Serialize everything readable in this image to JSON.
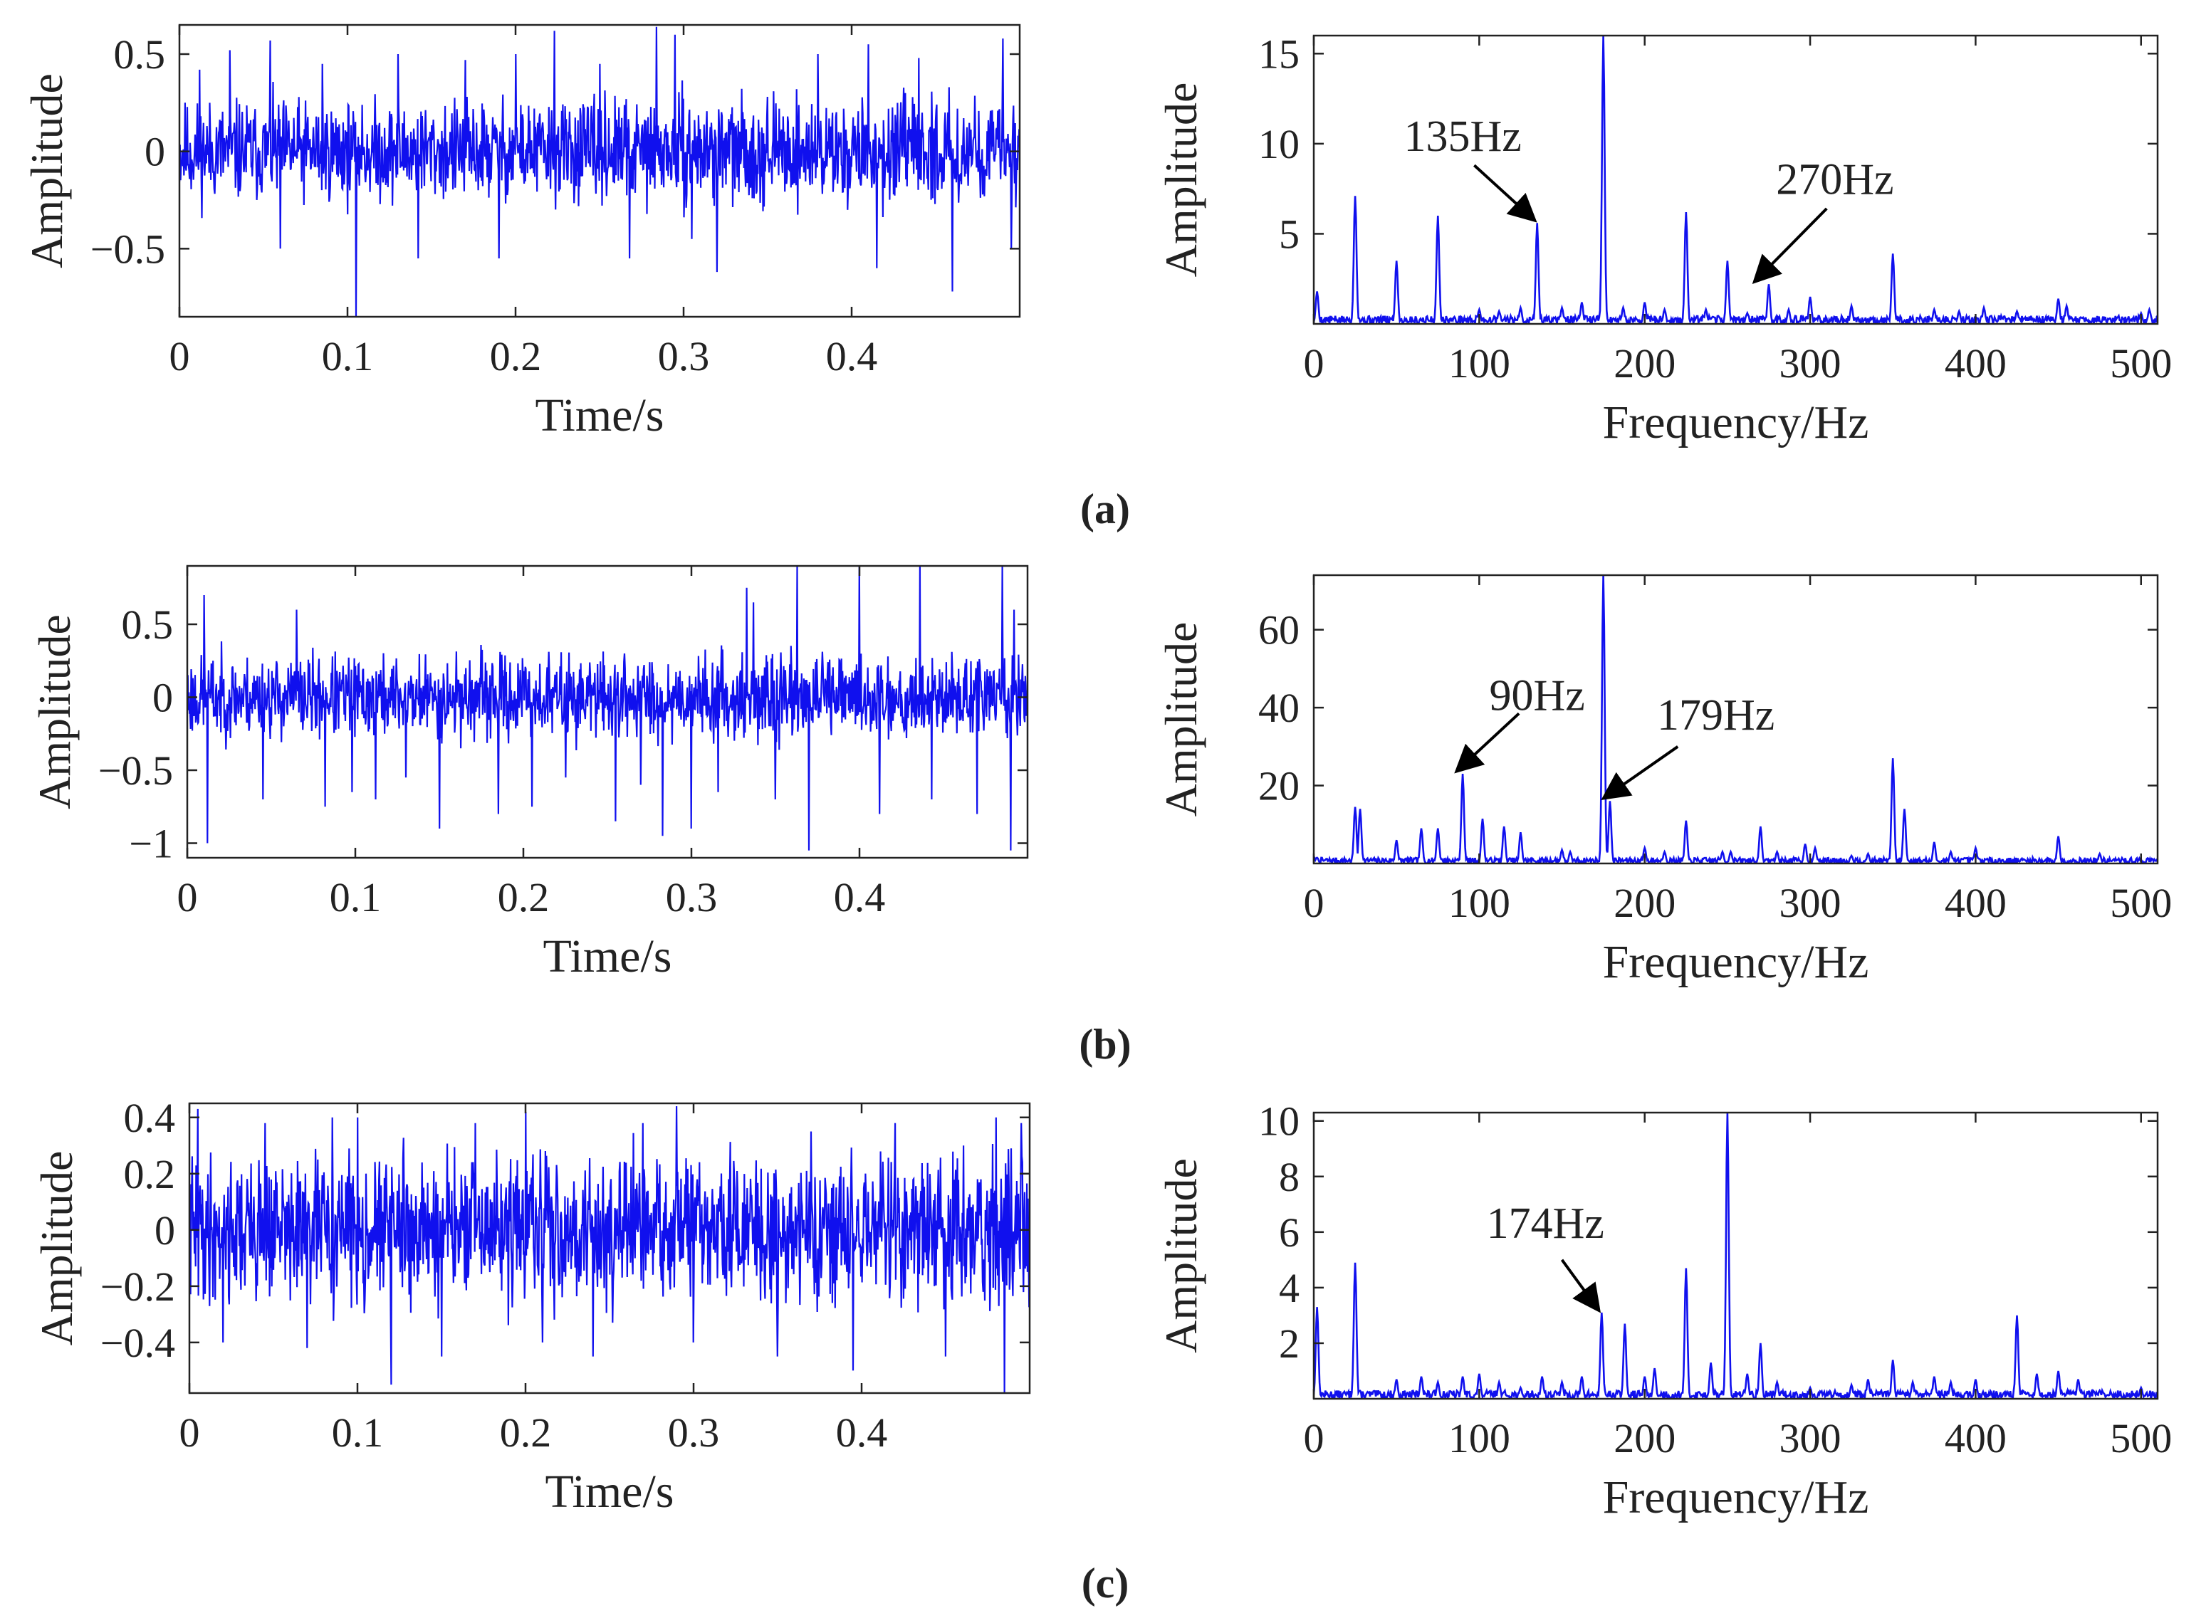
{
  "colors": {
    "signal": "#1010ee",
    "axis": "#222222",
    "arrow": "#000000"
  },
  "labels": {
    "time_xlabel": "Time/s",
    "freq_xlabel": "Frequency/Hz",
    "ylabel": "Amplitude"
  },
  "chart_data": [
    {
      "id": "a",
      "caption": "(a)",
      "time": {
        "type": "line",
        "xlabel": "Time/s",
        "ylabel": "Amplitude",
        "xlim": [
          0,
          0.5
        ],
        "ylim": [
          -0.85,
          0.65
        ],
        "xticks": [
          0,
          0.1,
          0.2,
          0.3,
          0.4
        ],
        "xticklabels": [
          "0",
          "0.1",
          "0.2",
          "0.3",
          "0.4"
        ],
        "yticks": [
          -0.5,
          0,
          0.5
        ],
        "yticklabels": [
          "−0.5",
          "0",
          "0.5"
        ],
        "seed": 11,
        "noise_amp": 0.2,
        "spikes": [
          [
            0.012,
            0.42
          ],
          [
            0.03,
            0.52
          ],
          [
            0.054,
            0.57
          ],
          [
            0.06,
            -0.5
          ],
          [
            0.085,
            0.45
          ],
          [
            0.105,
            -0.85
          ],
          [
            0.13,
            0.5
          ],
          [
            0.142,
            -0.55
          ],
          [
            0.17,
            0.47
          ],
          [
            0.19,
            -0.55
          ],
          [
            0.2,
            0.5
          ],
          [
            0.223,
            0.62
          ],
          [
            0.25,
            0.45
          ],
          [
            0.268,
            -0.55
          ],
          [
            0.284,
            0.64
          ],
          [
            0.295,
            0.6
          ],
          [
            0.305,
            -0.45
          ],
          [
            0.32,
            -0.62
          ],
          [
            0.38,
            0.5
          ],
          [
            0.41,
            0.55
          ],
          [
            0.415,
            -0.6
          ],
          [
            0.44,
            0.48
          ],
          [
            0.46,
            -0.72
          ],
          [
            0.49,
            0.58
          ],
          [
            0.495,
            -0.5
          ]
        ]
      },
      "spectrum": {
        "type": "line",
        "xlabel": "Frequency/Hz",
        "ylabel": "Amplitude",
        "xlim": [
          0,
          510
        ],
        "ylim": [
          0,
          16
        ],
        "xticks": [
          0,
          100,
          200,
          300,
          400,
          500
        ],
        "xticklabels": [
          "0",
          "100",
          "200",
          "300",
          "400",
          "500"
        ],
        "yticks": [
          5,
          10,
          15
        ],
        "yticklabels": [
          "5",
          "10",
          "15"
        ],
        "seed": 5,
        "floor": 0.45,
        "peaks": [
          [
            2,
            1.8
          ],
          [
            25,
            7.1
          ],
          [
            50,
            3.5
          ],
          [
            75,
            6.0
          ],
          [
            100,
            0.8
          ],
          [
            112,
            0.7
          ],
          [
            125,
            0.9
          ],
          [
            135,
            5.6
          ],
          [
            150,
            0.9
          ],
          [
            162,
            1.2
          ],
          [
            175,
            16.0
          ],
          [
            187,
            0.9
          ],
          [
            200,
            1.2
          ],
          [
            212,
            0.8
          ],
          [
            225,
            6.2
          ],
          [
            237,
            0.8
          ],
          [
            250,
            3.5
          ],
          [
            262,
            0.6
          ],
          [
            275,
            2.2
          ],
          [
            287,
            0.8
          ],
          [
            300,
            1.5
          ],
          [
            325,
            1.0
          ],
          [
            350,
            3.9
          ],
          [
            375,
            0.8
          ],
          [
            390,
            0.7
          ],
          [
            405,
            0.9
          ],
          [
            425,
            0.7
          ],
          [
            450,
            1.4
          ],
          [
            455,
            1.0
          ],
          [
            500,
            0.6
          ],
          [
            505,
            0.8
          ]
        ],
        "annotations": [
          {
            "text": "135Hz",
            "freq": 135,
            "amp": 5.6,
            "label_freq": 90,
            "label_amp": 10.4,
            "arrow_from": [
              97,
              8.8
            ]
          },
          {
            "text": "270Hz",
            "freq": 270,
            "amp": 2.2,
            "label_freq": 315,
            "label_amp": 8.0,
            "arrow_from": [
              310,
              6.4
            ]
          }
        ]
      }
    },
    {
      "id": "b",
      "caption": "(b)",
      "time": {
        "type": "line",
        "xlabel": "Time/s",
        "ylabel": "Amplitude",
        "xlim": [
          0,
          0.5
        ],
        "ylim": [
          -1.1,
          0.9
        ],
        "xticks": [
          0,
          0.1,
          0.2,
          0.3,
          0.4
        ],
        "xticklabels": [
          "0",
          "0.1",
          "0.2",
          "0.3",
          "0.4"
        ],
        "yticks": [
          -1,
          -0.5,
          0,
          0.5
        ],
        "yticklabels": [
          "−1",
          "−0.5",
          "0",
          "0.5"
        ],
        "seed": 23,
        "noise_amp": 0.22,
        "spikes": [
          [
            0.01,
            0.7
          ],
          [
            0.012,
            -1.0
          ],
          [
            0.045,
            -0.7
          ],
          [
            0.065,
            0.6
          ],
          [
            0.082,
            -0.75
          ],
          [
            0.098,
            -0.65
          ],
          [
            0.112,
            -0.7
          ],
          [
            0.13,
            -0.55
          ],
          [
            0.15,
            -0.9
          ],
          [
            0.185,
            -0.8
          ],
          [
            0.205,
            -0.75
          ],
          [
            0.225,
            -0.55
          ],
          [
            0.255,
            -0.85
          ],
          [
            0.27,
            -0.6
          ],
          [
            0.283,
            -0.95
          ],
          [
            0.3,
            -0.9
          ],
          [
            0.316,
            -0.65
          ],
          [
            0.333,
            0.75
          ],
          [
            0.337,
            0.65
          ],
          [
            0.35,
            -0.7
          ],
          [
            0.363,
            0.9
          ],
          [
            0.37,
            -1.05
          ],
          [
            0.4,
            0.9
          ],
          [
            0.412,
            -0.8
          ],
          [
            0.436,
            0.9
          ],
          [
            0.443,
            -0.7
          ],
          [
            0.47,
            -0.8
          ],
          [
            0.485,
            0.9
          ],
          [
            0.49,
            -1.05
          ],
          [
            0.492,
            0.6
          ]
        ]
      },
      "spectrum": {
        "type": "line",
        "xlabel": "Frequency/Hz",
        "ylabel": "Amplitude",
        "xlim": [
          0,
          510
        ],
        "ylim": [
          0,
          74
        ],
        "xticks": [
          0,
          100,
          200,
          300,
          400,
          500
        ],
        "xticklabels": [
          "0",
          "100",
          "200",
          "300",
          "400",
          "500"
        ],
        "yticks": [
          20,
          40,
          60
        ],
        "yticklabels": [
          "20",
          "40",
          "60"
        ],
        "seed": 7,
        "floor": 1.5,
        "peaks": [
          [
            2,
            1.5
          ],
          [
            25,
            14.5
          ],
          [
            28,
            14.0
          ],
          [
            50,
            6.0
          ],
          [
            65,
            9.0
          ],
          [
            75,
            9.0
          ],
          [
            90,
            23.0
          ],
          [
            102,
            11.5
          ],
          [
            115,
            9.5
          ],
          [
            125,
            8.0
          ],
          [
            150,
            3.5
          ],
          [
            155,
            3.0
          ],
          [
            175,
            74.0
          ],
          [
            179,
            16.0
          ],
          [
            200,
            4.0
          ],
          [
            212,
            3.0
          ],
          [
            225,
            11.0
          ],
          [
            247,
            3.0
          ],
          [
            252,
            3.0
          ],
          [
            270,
            9.5
          ],
          [
            280,
            3.0
          ],
          [
            297,
            5.0
          ],
          [
            303,
            4.0
          ],
          [
            325,
            2.0
          ],
          [
            335,
            2.5
          ],
          [
            350,
            27.0
          ],
          [
            357,
            14.0
          ],
          [
            375,
            5.5
          ],
          [
            385,
            3.0
          ],
          [
            400,
            4.0
          ],
          [
            450,
            7.0
          ],
          [
            475,
            2.5
          ]
        ],
        "annotations": [
          {
            "text": "90Hz",
            "freq": 90,
            "amp": 23.0,
            "label_freq": 135,
            "label_amp": 43.0,
            "arrow_from": [
              124,
              38.5
            ]
          },
          {
            "text": "179Hz",
            "freq": 179,
            "amp": 16.0,
            "label_freq": 243,
            "label_amp": 38.0,
            "arrow_from": [
              220,
              30.0
            ]
          }
        ]
      }
    },
    {
      "id": "c",
      "caption": "(c)",
      "time": {
        "type": "line",
        "xlabel": "Time/s",
        "ylabel": "Amplitude",
        "xlim": [
          0,
          0.5
        ],
        "ylim": [
          -0.58,
          0.45
        ],
        "xticks": [
          0,
          0.1,
          0.2,
          0.3,
          0.4
        ],
        "xticklabels": [
          "0",
          "0.1",
          "0.2",
          "0.3",
          "0.4"
        ],
        "yticks": [
          -0.4,
          -0.2,
          0,
          0.2,
          0.4
        ],
        "yticklabels": [
          "−0.4",
          "−0.2",
          "0",
          "0.2",
          "0.4"
        ],
        "seed": 41,
        "noise_amp": 0.2,
        "spikes": [
          [
            0.005,
            0.43
          ],
          [
            0.02,
            -0.4
          ],
          [
            0.045,
            0.38
          ],
          [
            0.07,
            -0.42
          ],
          [
            0.085,
            0.4
          ],
          [
            0.1,
            0.4
          ],
          [
            0.12,
            -0.55
          ],
          [
            0.15,
            -0.45
          ],
          [
            0.17,
            0.38
          ],
          [
            0.2,
            0.42
          ],
          [
            0.21,
            -0.4
          ],
          [
            0.24,
            -0.45
          ],
          [
            0.27,
            0.38
          ],
          [
            0.29,
            0.44
          ],
          [
            0.3,
            -0.4
          ],
          [
            0.35,
            -0.45
          ],
          [
            0.37,
            0.35
          ],
          [
            0.395,
            -0.5
          ],
          [
            0.42,
            0.38
          ],
          [
            0.45,
            -0.45
          ],
          [
            0.48,
            0.4
          ],
          [
            0.485,
            -0.58
          ],
          [
            0.495,
            0.38
          ]
        ]
      },
      "spectrum": {
        "type": "line",
        "xlabel": "Frequency/Hz",
        "ylabel": "Amplitude",
        "xlim": [
          0,
          510
        ],
        "ylim": [
          0,
          10.3
        ],
        "xticks": [
          0,
          100,
          200,
          300,
          400,
          500
        ],
        "xticklabels": [
          "0",
          "100",
          "200",
          "300",
          "400",
          "500"
        ],
        "yticks": [
          2,
          4,
          6,
          8,
          10
        ],
        "yticklabels": [
          "2",
          "4",
          "6",
          "8",
          "10"
        ],
        "seed": 13,
        "floor": 0.3,
        "peaks": [
          [
            2,
            3.3
          ],
          [
            25,
            4.9
          ],
          [
            50,
            0.7
          ],
          [
            65,
            0.8
          ],
          [
            75,
            0.6
          ],
          [
            90,
            0.8
          ],
          [
            100,
            0.9
          ],
          [
            112,
            0.6
          ],
          [
            125,
            0.4
          ],
          [
            138,
            0.8
          ],
          [
            150,
            0.6
          ],
          [
            162,
            0.8
          ],
          [
            174,
            3.1
          ],
          [
            188,
            2.7
          ],
          [
            200,
            0.8
          ],
          [
            206,
            1.1
          ],
          [
            225,
            4.7
          ],
          [
            240,
            1.3
          ],
          [
            250,
            10.3
          ],
          [
            262,
            0.9
          ],
          [
            270,
            2.0
          ],
          [
            280,
            0.6
          ],
          [
            300,
            0.4
          ],
          [
            325,
            0.5
          ],
          [
            335,
            0.7
          ],
          [
            350,
            1.4
          ],
          [
            362,
            0.6
          ],
          [
            375,
            0.8
          ],
          [
            385,
            0.6
          ],
          [
            400,
            0.7
          ],
          [
            425,
            3.0
          ],
          [
            437,
            0.9
          ],
          [
            450,
            1.0
          ],
          [
            462,
            0.7
          ],
          [
            475,
            0.3
          ],
          [
            500,
            0.4
          ]
        ],
        "annotations": [
          {
            "text": "174Hz",
            "freq": 174,
            "amp": 3.1,
            "label_freq": 140,
            "label_amp": 6.3,
            "arrow_from": [
              150,
              5.0
            ]
          }
        ]
      }
    }
  ]
}
